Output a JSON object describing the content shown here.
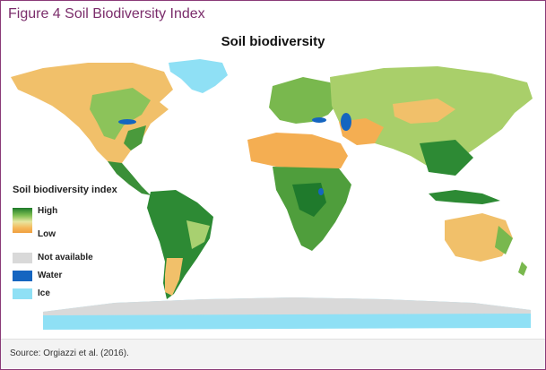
{
  "figure_title": "Figure 4 Soil Biodiversity Index",
  "map_title": "Soil biodiversity",
  "legend": {
    "title": "Soil biodiversity index",
    "high_label": "High",
    "low_label": "Low",
    "gradient_colors": [
      "#1d7a2a",
      "#7fbf52",
      "#e8e6a0",
      "#f5b85a",
      "#f0a040"
    ],
    "categories": [
      {
        "label": "Not available",
        "color": "#d9d9d9"
      },
      {
        "label": "Water",
        "color": "#1565c0"
      },
      {
        "label": "Ice",
        "color": "#8fe0f5"
      }
    ]
  },
  "source": "Source: Orgiazzi et al. (2016).",
  "colors": {
    "title_purple": "#7b2d6b",
    "frame": "#8a3b78",
    "high_green": "#2e8b3a",
    "low_orange": "#f5b85a",
    "ice": "#8fe0f5",
    "water": "#1565c0"
  }
}
